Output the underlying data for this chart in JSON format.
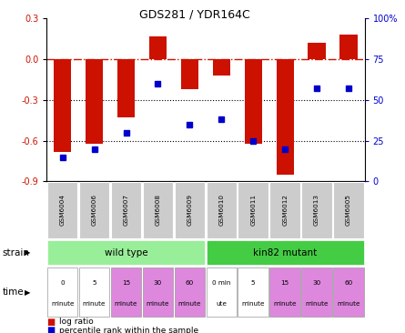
{
  "title": "GDS281 / YDR164C",
  "samples": [
    "GSM6004",
    "GSM6006",
    "GSM6007",
    "GSM6008",
    "GSM6009",
    "GSM6010",
    "GSM6011",
    "GSM6012",
    "GSM6013",
    "GSM6005"
  ],
  "log_ratios": [
    -0.68,
    -0.62,
    -0.43,
    0.17,
    -0.22,
    -0.12,
    -0.62,
    -0.85,
    0.12,
    0.18
  ],
  "percentile_ranks": [
    15,
    20,
    30,
    60,
    35,
    38,
    25,
    20,
    57,
    57
  ],
  "ylim_left": [
    -0.9,
    0.3
  ],
  "ylim_right": [
    0,
    100
  ],
  "yticks_left": [
    -0.9,
    -0.6,
    -0.3,
    0.0,
    0.3
  ],
  "yticks_right": [
    0,
    25,
    50,
    75,
    100
  ],
  "ytick_labels_right": [
    "0",
    "25",
    "50",
    "75",
    "100%"
  ],
  "bar_color": "#cc1100",
  "dot_color": "#0000cc",
  "hline_color": "#cc1100",
  "dotted_line_color": "#000000",
  "strain_wild_color": "#99ee99",
  "strain_mutant_color": "#44cc44",
  "time_colors_all": [
    "#ffffff",
    "#ffffff",
    "#dd88dd",
    "#dd88dd",
    "#dd88dd",
    "#ffffff",
    "#ffffff",
    "#dd88dd",
    "#dd88dd",
    "#dd88dd"
  ],
  "time_labels_all": [
    "0\nminute",
    "5\nminute",
    "15\nminute",
    "30\nminute",
    "60\nminute",
    "0 min\nute",
    "5\nminute",
    "15\nminute",
    "30\nminute",
    "60\nminute"
  ],
  "strain_labels": [
    "wild type",
    "kin82 mutant"
  ],
  "header_bg": "#cccccc",
  "legend_log_ratio": "log ratio",
  "legend_percentile": "percentile rank within the sample"
}
